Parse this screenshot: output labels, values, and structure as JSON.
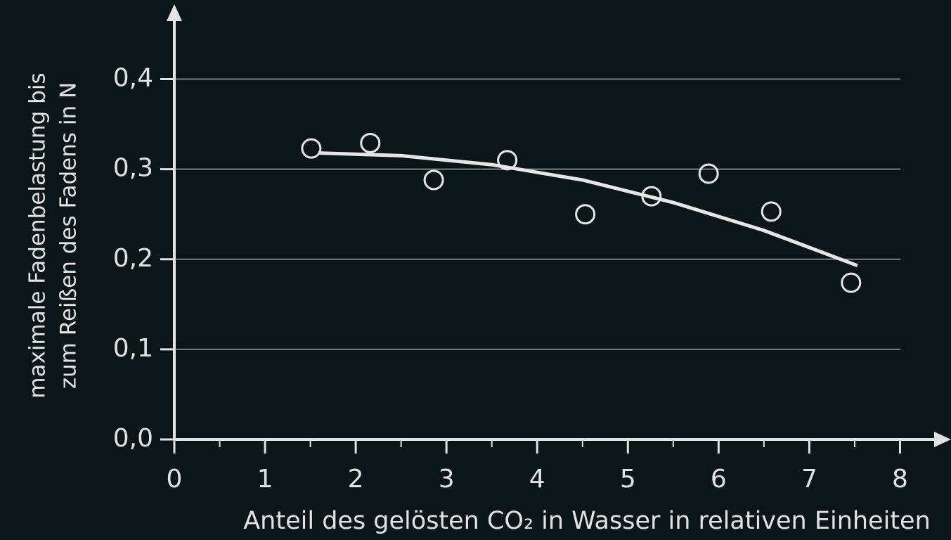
{
  "chart_data": {
    "type": "scatter",
    "xlabel": "Anteil des gelösten CO₂ in Wasser in relativen Einheiten",
    "ylabel": [
      "maximale Fadenbelastung bis",
      "zum Reißen des Fadens in N"
    ],
    "xlim": [
      0,
      8.5
    ],
    "ylim": [
      0,
      0.48
    ],
    "xticks": [
      0,
      1,
      2,
      3,
      4,
      5,
      6,
      7,
      8
    ],
    "xminorticks": [
      0.5,
      1.5,
      2.5,
      3.5,
      4.5,
      5.5,
      6.5,
      7.5
    ],
    "yticks": [
      {
        "value": 0,
        "label": "0,0"
      },
      {
        "value": 0.1,
        "label": "0,1"
      },
      {
        "value": 0.2,
        "label": "0,2"
      },
      {
        "value": 0.3,
        "label": "0,3"
      },
      {
        "value": 0.4,
        "label": "0,4"
      }
    ],
    "grid": true,
    "series": [
      {
        "color": "#e6e6e6",
        "x": [
          1.51,
          2.16,
          2.86,
          3.67,
          4.53,
          5.26,
          5.89,
          6.58,
          7.46
        ],
        "values": [
          0.323,
          0.329,
          0.288,
          0.31,
          0.25,
          0.27,
          0.295,
          0.253,
          0.174
        ]
      },
      {
        "type": "line",
        "color": "#e6e6e6",
        "x": [
          1.59,
          2.5,
          3.5,
          4.5,
          5.5,
          6.5,
          7.53
        ],
        "values": [
          0.318,
          0.315,
          0.305,
          0.288,
          0.263,
          0.232,
          0.193
        ]
      }
    ]
  }
}
